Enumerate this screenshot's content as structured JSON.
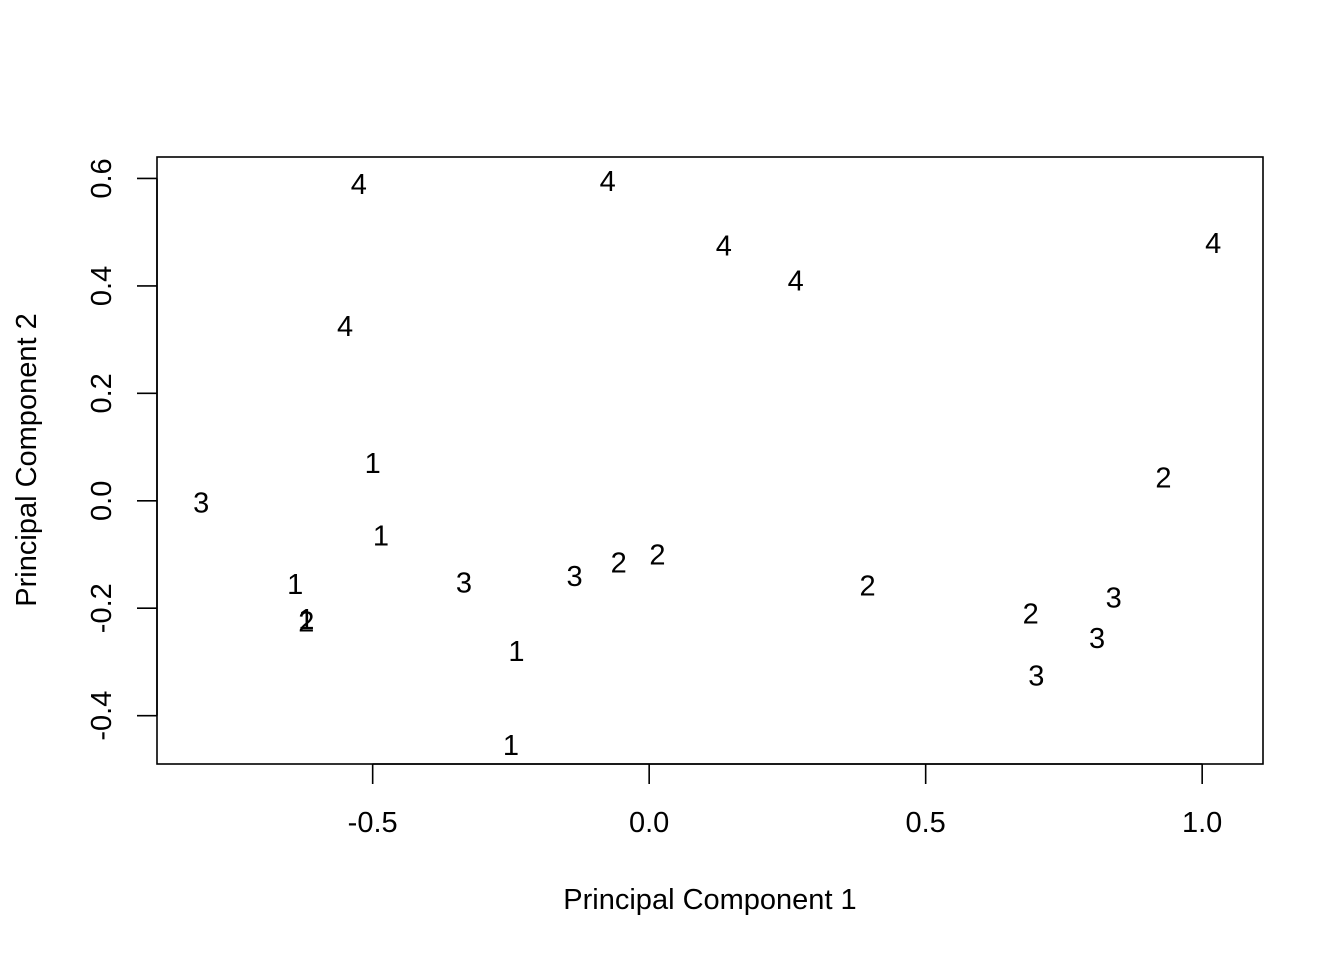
{
  "chart_data": {
    "type": "scatter",
    "title": "",
    "xlabel": "Principal Component 1",
    "ylabel": "Principal Component 2",
    "xlim": [
      -0.89,
      1.11
    ],
    "ylim": [
      -0.49,
      0.64
    ],
    "xticks": [
      -0.5,
      0.0,
      0.5,
      1.0
    ],
    "xtick_labels": [
      "-0.5",
      "0.0",
      "0.5",
      "1.0"
    ],
    "yticks": [
      -0.4,
      -0.2,
      0.0,
      0.2,
      0.4,
      0.6
    ],
    "ytick_labels": [
      "-0.4",
      "-0.2",
      "0.0",
      "0.2",
      "0.4",
      "0.6"
    ],
    "grid": false,
    "marker": "text label (group number)",
    "points": [
      {
        "x": -0.5,
        "y": 0.07,
        "label": "1"
      },
      {
        "x": -0.485,
        "y": -0.065,
        "label": "1"
      },
      {
        "x": -0.64,
        "y": -0.155,
        "label": "1"
      },
      {
        "x": -0.62,
        "y": -0.22,
        "label": "1"
      },
      {
        "x": -0.24,
        "y": -0.28,
        "label": "1"
      },
      {
        "x": -0.25,
        "y": -0.455,
        "label": "1"
      },
      {
        "x": -0.62,
        "y": -0.225,
        "label": "2"
      },
      {
        "x": -0.055,
        "y": -0.115,
        "label": "2"
      },
      {
        "x": 0.015,
        "y": -0.1,
        "label": "2"
      },
      {
        "x": 0.395,
        "y": -0.158,
        "label": "2"
      },
      {
        "x": 0.69,
        "y": -0.21,
        "label": "2"
      },
      {
        "x": 0.93,
        "y": 0.043,
        "label": "2"
      },
      {
        "x": -0.81,
        "y": -0.003,
        "label": "3"
      },
      {
        "x": -0.335,
        "y": -0.152,
        "label": "3"
      },
      {
        "x": -0.135,
        "y": -0.14,
        "label": "3"
      },
      {
        "x": 0.84,
        "y": -0.18,
        "label": "3"
      },
      {
        "x": 0.81,
        "y": -0.255,
        "label": "3"
      },
      {
        "x": 0.7,
        "y": -0.325,
        "label": "3"
      },
      {
        "x": -0.525,
        "y": 0.59,
        "label": "4"
      },
      {
        "x": -0.075,
        "y": 0.595,
        "label": "4"
      },
      {
        "x": 0.135,
        "y": 0.475,
        "label": "4"
      },
      {
        "x": 0.265,
        "y": 0.41,
        "label": "4"
      },
      {
        "x": -0.55,
        "y": 0.325,
        "label": "4"
      },
      {
        "x": 1.02,
        "y": 0.48,
        "label": "4"
      }
    ]
  }
}
